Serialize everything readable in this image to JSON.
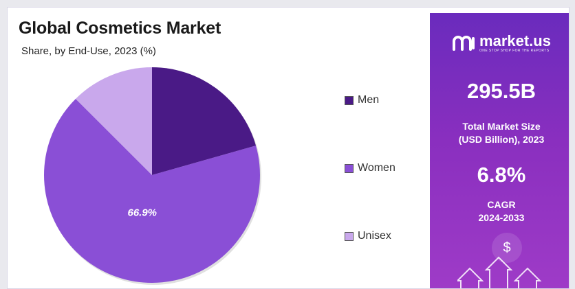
{
  "title": "Global Cosmetics Market",
  "subtitle": "Share, by End-Use, 2023 (%)",
  "chart_data": {
    "type": "pie",
    "title": "Global Cosmetics Market",
    "subtitle": "Share, by End-Use, 2023 (%)",
    "slices": [
      {
        "label": "Men",
        "value": 20.6,
        "color": "#4a1a86",
        "data_label": ""
      },
      {
        "label": "Women",
        "value": 66.9,
        "color": "#8a4fd6",
        "data_label": "66.9%"
      },
      {
        "label": "Unisex",
        "value": 12.5,
        "color": "#c9a8ec",
        "data_label": ""
      }
    ],
    "legend_placement": "right"
  },
  "legend": [
    {
      "label": "Men",
      "color": "#4a1a86"
    },
    {
      "label": "Women",
      "color": "#8a4fd6"
    },
    {
      "label": "Unisex",
      "color": "#c9a8ec"
    }
  ],
  "panel": {
    "brand_name": "market.us",
    "brand_tagline": "ONE STOP SHOP FOR THE REPORTS",
    "market_size_value": "295.5B",
    "market_size_label_line1": "Total Market Size",
    "market_size_label_line2": "(USD Billion), 2023",
    "cagr_value": "6.8%",
    "cagr_label_line1": "CAGR",
    "cagr_label_line2": "2024-2033",
    "dollar_symbol": "$",
    "icons": [
      "market-us-logo-icon",
      "dollar-icon",
      "up-arrow-icon"
    ]
  }
}
